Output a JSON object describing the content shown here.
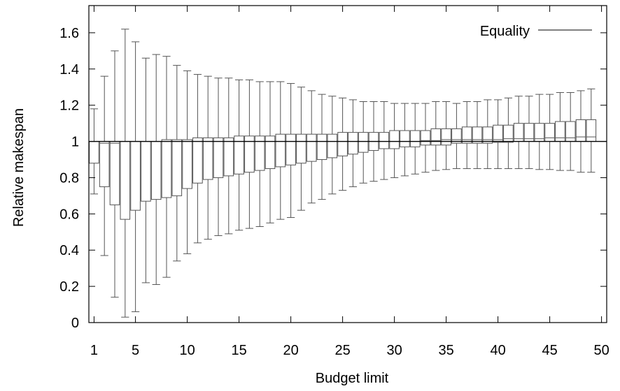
{
  "chart_data": {
    "type": "box",
    "xlabel": "Budget limit",
    "ylabel": "Relative makespan",
    "xlim": [
      0.5,
      50.5
    ],
    "ylim": [
      0,
      1.75
    ],
    "x_ticks": [
      1,
      5,
      10,
      15,
      20,
      25,
      30,
      35,
      40,
      45,
      50
    ],
    "y_ticks": [
      0,
      0.2,
      0.4,
      0.6,
      0.8,
      1,
      1.2,
      1.4,
      1.6
    ],
    "y_tick_labels": [
      "0",
      "0.2",
      "0.4",
      "0.6",
      "0.8",
      "1",
      "1.2",
      "1.4",
      "1.6"
    ],
    "legend": {
      "label": "Equality",
      "position": "top-right"
    },
    "reference_line": {
      "series": "Equality",
      "y": 1
    },
    "grid": false,
    "box_series": {
      "x": [
        1,
        2,
        3,
        4,
        5,
        6,
        7,
        8,
        9,
        10,
        11,
        12,
        13,
        14,
        15,
        16,
        17,
        18,
        19,
        20,
        21,
        22,
        23,
        24,
        25,
        26,
        27,
        28,
        29,
        30,
        31,
        32,
        33,
        34,
        35,
        36,
        37,
        38,
        39,
        40,
        41,
        42,
        43,
        44,
        45,
        46,
        47,
        48,
        49
      ],
      "whisker_low": [
        0.71,
        0.37,
        0.14,
        0.03,
        0.06,
        0.22,
        0.21,
        0.25,
        0.34,
        0.38,
        0.44,
        0.46,
        0.48,
        0.49,
        0.51,
        0.52,
        0.53,
        0.55,
        0.57,
        0.58,
        0.62,
        0.66,
        0.68,
        0.71,
        0.73,
        0.75,
        0.77,
        0.78,
        0.79,
        0.8,
        0.81,
        0.82,
        0.83,
        0.84,
        0.845,
        0.85,
        0.85,
        0.85,
        0.85,
        0.85,
        0.85,
        0.85,
        0.85,
        0.845,
        0.845,
        0.84,
        0.84,
        0.83,
        0.83
      ],
      "q1": [
        0.88,
        0.75,
        0.65,
        0.57,
        0.62,
        0.67,
        0.68,
        0.69,
        0.7,
        0.74,
        0.77,
        0.79,
        0.8,
        0.81,
        0.82,
        0.83,
        0.84,
        0.85,
        0.86,
        0.87,
        0.88,
        0.89,
        0.9,
        0.91,
        0.92,
        0.93,
        0.94,
        0.95,
        0.96,
        0.96,
        0.97,
        0.97,
        0.98,
        0.98,
        0.98,
        0.99,
        0.99,
        0.99,
        0.99,
        0.995,
        0.995,
        1.0,
        1.0,
        1.0,
        1.0,
        1.0,
        1.0,
        1.0,
        1.0
      ],
      "median": [
        1,
        0.99,
        0.99,
        1.0,
        1.0,
        1.0,
        1.0,
        1.0,
        1.0,
        1.0,
        1.0,
        1.0,
        1.0,
        1.0,
        1.0,
        1.0,
        1.0,
        1.0,
        1.0,
        1.0,
        1.0,
        1.0,
        1.0,
        1.0,
        1.0,
        1.0,
        1.0,
        1.0,
        1.0,
        1.0,
        1.0,
        1.0,
        1.005,
        1.005,
        1.01,
        1.01,
        1.01,
        1.01,
        1.01,
        1.01,
        1.015,
        1.015,
        1.015,
        1.015,
        1.02,
        1.02,
        1.02,
        1.025,
        1.025
      ],
      "q3": [
        1.0,
        1.0,
        1.0,
        1.0,
        1.0,
        1.0,
        1.0,
        1.01,
        1.01,
        1.01,
        1.02,
        1.02,
        1.02,
        1.02,
        1.03,
        1.03,
        1.03,
        1.03,
        1.04,
        1.04,
        1.04,
        1.04,
        1.04,
        1.04,
        1.05,
        1.05,
        1.05,
        1.05,
        1.05,
        1.06,
        1.06,
        1.06,
        1.06,
        1.07,
        1.07,
        1.07,
        1.08,
        1.08,
        1.08,
        1.09,
        1.09,
        1.1,
        1.1,
        1.1,
        1.1,
        1.11,
        1.11,
        1.12,
        1.12
      ],
      "whisker_high": [
        1.18,
        1.36,
        1.5,
        1.62,
        1.55,
        1.46,
        1.48,
        1.47,
        1.42,
        1.39,
        1.37,
        1.36,
        1.35,
        1.35,
        1.34,
        1.34,
        1.33,
        1.33,
        1.33,
        1.32,
        1.3,
        1.28,
        1.26,
        1.25,
        1.24,
        1.23,
        1.22,
        1.22,
        1.22,
        1.21,
        1.21,
        1.21,
        1.21,
        1.22,
        1.22,
        1.21,
        1.22,
        1.22,
        1.23,
        1.23,
        1.24,
        1.25,
        1.25,
        1.26,
        1.26,
        1.27,
        1.27,
        1.28,
        1.29
      ]
    }
  },
  "colors": {
    "ink": "#000000",
    "box": "#555555"
  }
}
